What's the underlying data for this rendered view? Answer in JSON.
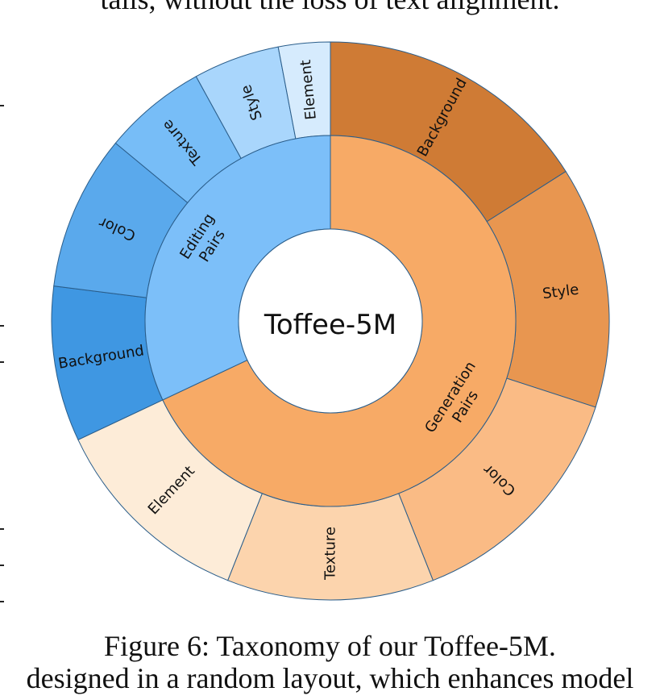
{
  "page": {
    "top_text_fragment": "tails, without the loss of text alignment.",
    "bottom_text_fragment": "designed in a random layout, which enhances model",
    "caption": "Figure 6: Taxonomy of our Toffee-5M."
  },
  "chart_data": {
    "type": "sunburst",
    "center_label": "Toffee-5M",
    "inner_ring": [
      {
        "name": "Generation Pairs",
        "line1": "Generation",
        "line2": "Pairs",
        "value": 68,
        "color": "#f7aa66"
      },
      {
        "name": "Editing Pairs",
        "line1": "Editing",
        "line2": "Pairs",
        "value": 32,
        "color": "#7cbff9"
      }
    ],
    "outer_ring": [
      {
        "parent": "Generation Pairs",
        "name": "Background",
        "value": 16,
        "color": "#cf7b35"
      },
      {
        "parent": "Generation Pairs",
        "name": "Style",
        "value": 14,
        "color": "#e89650"
      },
      {
        "parent": "Generation Pairs",
        "name": "Color",
        "value": 14,
        "color": "#fabb85"
      },
      {
        "parent": "Generation Pairs",
        "name": "Texture",
        "value": 12,
        "color": "#fcd4ad"
      },
      {
        "parent": "Generation Pairs",
        "name": "Element",
        "value": 12,
        "color": "#fdecd8"
      },
      {
        "parent": "Editing Pairs",
        "name": "Background",
        "value": 9,
        "color": "#3f97e2"
      },
      {
        "parent": "Editing Pairs",
        "name": "Color",
        "value": 9,
        "color": "#5aa9ec"
      },
      {
        "parent": "Editing Pairs",
        "name": "Texture",
        "value": 6,
        "color": "#77bdf7"
      },
      {
        "parent": "Editing Pairs",
        "name": "Style",
        "value": 5,
        "color": "#a9d6fc"
      },
      {
        "parent": "Editing Pairs",
        "name": "Element",
        "value": 3,
        "color": "#d6ebfd"
      }
    ]
  }
}
